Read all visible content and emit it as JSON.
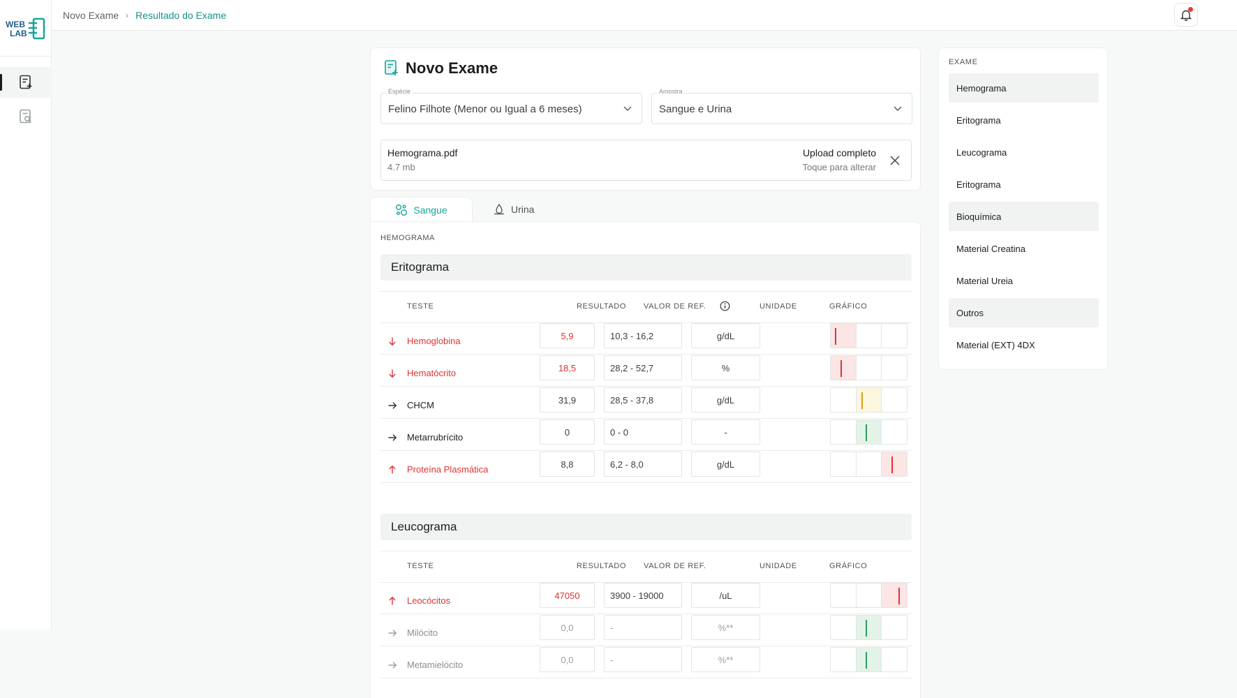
{
  "breadcrumb": {
    "first": "Novo Exame",
    "separator": "›",
    "current": "Resultado do Exame"
  },
  "logo": {
    "line1": "WEB",
    "line2": "LAB"
  },
  "card": {
    "title": "Novo Exame",
    "especie": {
      "label": "Espécie",
      "value": "Felino Filhote (Menor ou Igual a 6 meses)"
    },
    "amostra": {
      "label": "Amostra",
      "value": "Sangue e Urina"
    },
    "upload": {
      "file": "Hemograma.pdf",
      "size": "4.7 mb",
      "status": "Upload completo",
      "hint": "Toque para alterar"
    }
  },
  "tabs": {
    "sangue": "Sangue",
    "urina": "Urina"
  },
  "section": "HEMOGRAMA",
  "columns": {
    "teste": "TESTE",
    "resultado": "RESULTADO",
    "ref": "VALOR DE REF.",
    "unidade": "UNIDADE",
    "grafico": "GRÁFICO"
  },
  "eritrograma": {
    "title": "Eritograma",
    "rows": [
      {
        "direction": "down",
        "status": "low",
        "name": "Hemoglobina",
        "result": "5,9",
        "ref": "10,3 - 16,2",
        "unit": "g/dL",
        "graph_level": 0.2
      },
      {
        "direction": "down",
        "status": "low",
        "name": "Hematócrito",
        "result": "18,5",
        "ref": "28,2 - 52,7",
        "unit": "%",
        "graph_level": 0.5
      },
      {
        "direction": "right",
        "status": "warn",
        "name": "CHCM",
        "result": "31,9",
        "ref": "28,5 - 37,8",
        "unit": "g/dL",
        "graph_level": 0.25
      },
      {
        "direction": "right",
        "status": "normal",
        "name": "Metarrubrícito",
        "result": "0",
        "ref": "0 - 0",
        "unit": "-",
        "graph_level": 0.45
      },
      {
        "direction": "up",
        "status": "high",
        "name": "Proteína Plasmática",
        "result": "8,8",
        "ref": "6,2 - 8,0",
        "unit": "g/dL",
        "graph_level": 0.5
      }
    ]
  },
  "leucograma": {
    "title": "Leucograma",
    "rows": [
      {
        "direction": "up",
        "status": "high",
        "name": "Leocócitos",
        "result": "47050",
        "ref": "3900 - 19000",
        "unit": "/uL",
        "graph_level": 0.85
      },
      {
        "direction": "right",
        "status": "normal-muted",
        "name": "Milócito",
        "result": "0,0",
        "ref": "-",
        "unit": "%**",
        "graph_level": 0.45
      },
      {
        "direction": "right",
        "status": "normal-muted",
        "name": "Metamielócito",
        "result": "0,0",
        "ref": "-",
        "unit": "%**",
        "graph_level": 0.45
      }
    ]
  },
  "exam_panel": {
    "caption": "EXAME",
    "items": [
      {
        "label": "Hemograma",
        "highlight": true
      },
      {
        "label": "Eritograma",
        "highlight": false
      },
      {
        "label": "Leucograma",
        "highlight": false
      },
      {
        "label": "Eritograma",
        "highlight": false
      },
      {
        "label": "Bioquímica",
        "highlight": true
      },
      {
        "label": "Material Creatina",
        "highlight": false
      },
      {
        "label": "Material Ureia",
        "highlight": false
      },
      {
        "label": "Outros",
        "highlight": true
      },
      {
        "label": "Material (EXT) 4DX",
        "highlight": false
      }
    ]
  },
  "colors": {
    "accent": "#17a39a",
    "danger": "#e03232",
    "warn": "#d4a017",
    "ok": "#2e9e5b"
  }
}
